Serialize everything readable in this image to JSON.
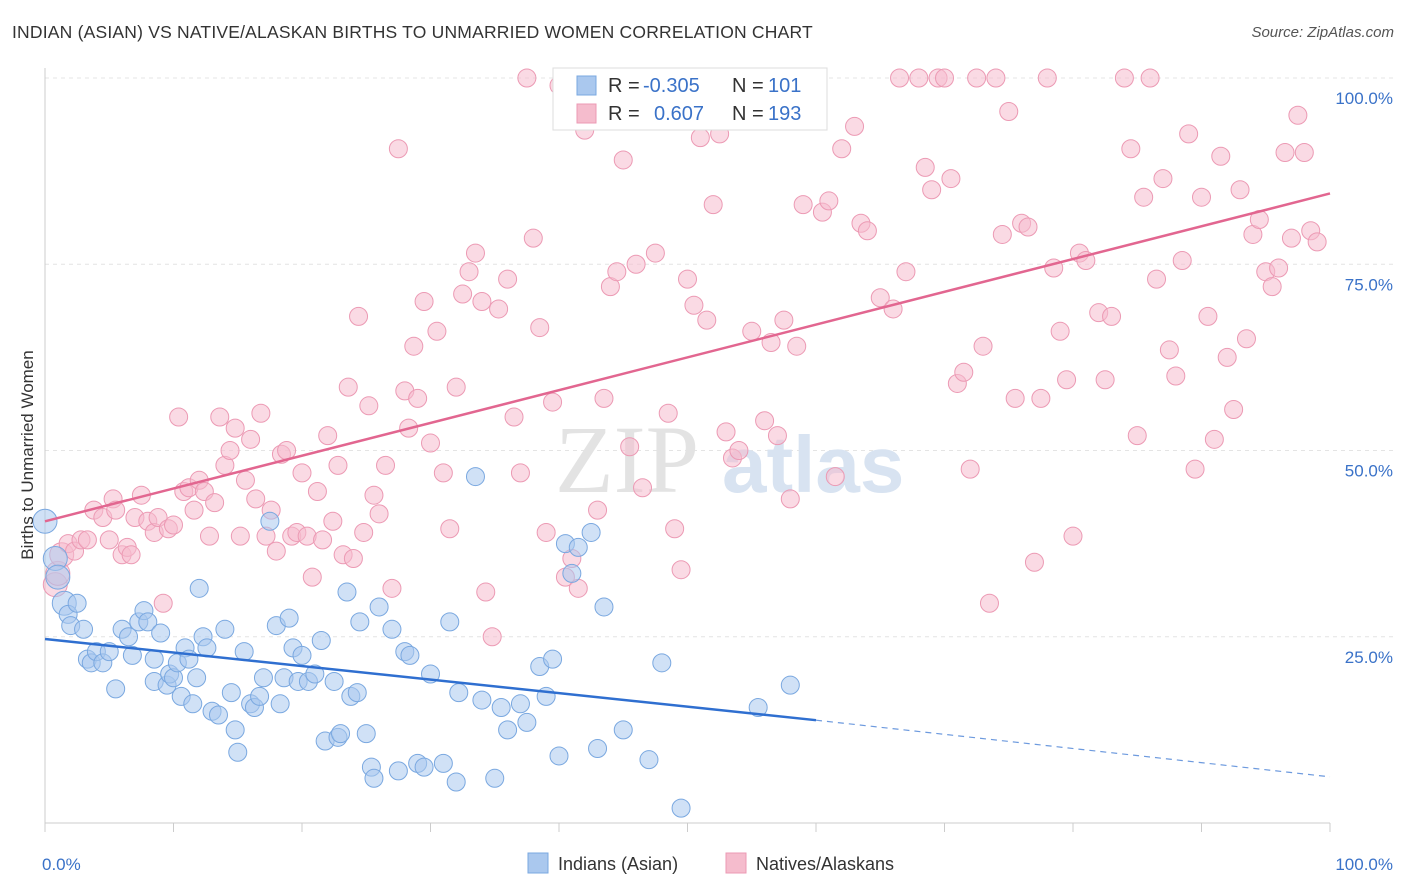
{
  "header": {
    "title": "INDIAN (ASIAN) VS NATIVE/ALASKAN BIRTHS TO UNMARRIED WOMEN CORRELATION CHART",
    "source": "Source: ZipAtlas.com"
  },
  "watermark": {
    "zip": "ZIP",
    "atlas": "atlas"
  },
  "legend": {
    "rows": [
      {
        "r_label": "R = ",
        "r_value": "-0.305",
        "n_label": "N = ",
        "n_value": "101"
      },
      {
        "r_label": "R = ",
        "r_value": "0.607",
        "n_label": "N = ",
        "n_value": "193"
      }
    ]
  },
  "colors": {
    "blue_fill": "#aac8ee",
    "blue_stroke": "#7aa8e0",
    "blue_line": "#2f6fd0",
    "pink_fill": "#f5bccd",
    "pink_stroke": "#ec9ab4",
    "pink_line": "#e26690",
    "accent_text": "#3a72c8"
  },
  "chart_data": {
    "type": "scatter",
    "xlabel": "",
    "ylabel": "Births to Unmarried Women",
    "xlim": [
      0,
      100
    ],
    "ylim": [
      0,
      100
    ],
    "x_tick_labels": [
      "0.0%",
      "100.0%"
    ],
    "y_ticks": [
      25,
      50,
      75,
      100
    ],
    "y_tick_labels": [
      "25.0%",
      "50.0%",
      "75.0%",
      "100.0%"
    ],
    "grid": true,
    "legend_position": "bottom-center",
    "series": [
      {
        "name": "Indians (Asian)",
        "color": "#aac8ee",
        "trend": {
          "x0": 0,
          "y0": 24.7,
          "x1": 60,
          "y1": 13.8,
          "dashed_to_x": 100,
          "dashed_to_y": 6.2
        },
        "points": [
          [
            0,
            40.5
          ],
          [
            0.8,
            35.5
          ],
          [
            1,
            33
          ],
          [
            1.5,
            29.5
          ],
          [
            1.8,
            28
          ],
          [
            2,
            26.5
          ],
          [
            2.5,
            29.5
          ],
          [
            3,
            26
          ],
          [
            3.3,
            22
          ],
          [
            3.6,
            21.5
          ],
          [
            4,
            23
          ],
          [
            4.5,
            21.5
          ],
          [
            5,
            23
          ],
          [
            5.5,
            18
          ],
          [
            6,
            26
          ],
          [
            6.5,
            25
          ],
          [
            6.8,
            22.5
          ],
          [
            7.3,
            27
          ],
          [
            7.7,
            28.5
          ],
          [
            8,
            27
          ],
          [
            8.5,
            22
          ],
          [
            8.5,
            19
          ],
          [
            9,
            25.5
          ],
          [
            9.5,
            18.5
          ],
          [
            9.7,
            20
          ],
          [
            10,
            19.5
          ],
          [
            10.3,
            21.5
          ],
          [
            10.6,
            17
          ],
          [
            10.9,
            23.5
          ],
          [
            11.2,
            22
          ],
          [
            11.5,
            16
          ],
          [
            11.8,
            19.5
          ],
          [
            12,
            31.5
          ],
          [
            12.3,
            25
          ],
          [
            12.6,
            23.5
          ],
          [
            13,
            15
          ],
          [
            13.5,
            14.5
          ],
          [
            14,
            26
          ],
          [
            14.5,
            17.5
          ],
          [
            14.8,
            12.5
          ],
          [
            15,
            9.5
          ],
          [
            15.5,
            23
          ],
          [
            16,
            16
          ],
          [
            16.3,
            15.5
          ],
          [
            16.7,
            17
          ],
          [
            17,
            19.5
          ],
          [
            17.5,
            40.5
          ],
          [
            18,
            26.5
          ],
          [
            18.3,
            16
          ],
          [
            18.6,
            19.5
          ],
          [
            19,
            27.5
          ],
          [
            19.3,
            23.5
          ],
          [
            19.7,
            19
          ],
          [
            20,
            22.5
          ],
          [
            20.5,
            19
          ],
          [
            21,
            20
          ],
          [
            21.5,
            24.5
          ],
          [
            21.8,
            11
          ],
          [
            22.5,
            19
          ],
          [
            22.8,
            11.5
          ],
          [
            23,
            12
          ],
          [
            23.5,
            31
          ],
          [
            23.8,
            17
          ],
          [
            24.3,
            17.5
          ],
          [
            24.5,
            27
          ],
          [
            25,
            12
          ],
          [
            25.4,
            7.5
          ],
          [
            25.6,
            6
          ],
          [
            26,
            29
          ],
          [
            27,
            26
          ],
          [
            27.5,
            7
          ],
          [
            28,
            23
          ],
          [
            28.4,
            22.5
          ],
          [
            29,
            8
          ],
          [
            29.5,
            7.5
          ],
          [
            30,
            20
          ],
          [
            31,
            8
          ],
          [
            31.5,
            27
          ],
          [
            32,
            5.5
          ],
          [
            32.2,
            17.5
          ],
          [
            33.5,
            46.5
          ],
          [
            34,
            16.5
          ],
          [
            35,
            6
          ],
          [
            35.5,
            15.5
          ],
          [
            36,
            12.5
          ],
          [
            37,
            16
          ],
          [
            37.5,
            13.5
          ],
          [
            38.5,
            21
          ],
          [
            39,
            17
          ],
          [
            39.5,
            22
          ],
          [
            40,
            9
          ],
          [
            40.5,
            37.5
          ],
          [
            41,
            33.5
          ],
          [
            41.5,
            37
          ],
          [
            42.5,
            39
          ],
          [
            43,
            10
          ],
          [
            43.5,
            29
          ],
          [
            45,
            12.5
          ],
          [
            47,
            8.5
          ],
          [
            48,
            21.5
          ],
          [
            49.5,
            2
          ],
          [
            55.5,
            15.5
          ],
          [
            58,
            18.5
          ]
        ]
      },
      {
        "name": "Natives/Alaskans",
        "color": "#f5bccd",
        "trend": {
          "x0": 0,
          "y0": 40.5,
          "x1": 100,
          "y1": 84.5
        },
        "points": [
          [
            0.8,
            32
          ],
          [
            1,
            33.5
          ],
          [
            1.3,
            36
          ],
          [
            1.8,
            37.5
          ],
          [
            2.3,
            36.5
          ],
          [
            2.8,
            38
          ],
          [
            3.3,
            38
          ],
          [
            3.8,
            42
          ],
          [
            4.5,
            41
          ],
          [
            5,
            38
          ],
          [
            5.3,
            43.5
          ],
          [
            5.5,
            42
          ],
          [
            6,
            36
          ],
          [
            6.4,
            37
          ],
          [
            6.7,
            36
          ],
          [
            7,
            41
          ],
          [
            7.5,
            44
          ],
          [
            8,
            40.5
          ],
          [
            8.5,
            39
          ],
          [
            8.8,
            41
          ],
          [
            9.2,
            29.5
          ],
          [
            9.6,
            39.5
          ],
          [
            10,
            40
          ],
          [
            10.4,
            54.5
          ],
          [
            10.8,
            44.5
          ],
          [
            11.2,
            45
          ],
          [
            11.6,
            42
          ],
          [
            12,
            46
          ],
          [
            12.4,
            44.5
          ],
          [
            12.8,
            38.5
          ],
          [
            13.2,
            43
          ],
          [
            13.6,
            54.5
          ],
          [
            14,
            48
          ],
          [
            14.4,
            50
          ],
          [
            14.8,
            53
          ],
          [
            15.2,
            38.5
          ],
          [
            15.6,
            46
          ],
          [
            16,
            51.5
          ],
          [
            16.4,
            43.5
          ],
          [
            16.8,
            55
          ],
          [
            17.2,
            38.5
          ],
          [
            17.6,
            42
          ],
          [
            18,
            36.5
          ],
          [
            18.4,
            49.5
          ],
          [
            18.8,
            50
          ],
          [
            19.2,
            38.5
          ],
          [
            19.6,
            39
          ],
          [
            20,
            47
          ],
          [
            20.4,
            38.5
          ],
          [
            20.8,
            33
          ],
          [
            21.2,
            44.5
          ],
          [
            21.6,
            38
          ],
          [
            22,
            52
          ],
          [
            22.4,
            40.5
          ],
          [
            22.8,
            48
          ],
          [
            23.2,
            36
          ],
          [
            23.6,
            58.5
          ],
          [
            24,
            35.5
          ],
          [
            24.4,
            68
          ],
          [
            24.8,
            39
          ],
          [
            25.2,
            56
          ],
          [
            25.6,
            44
          ],
          [
            26,
            41.5
          ],
          [
            26.5,
            48
          ],
          [
            27,
            31.5
          ],
          [
            27.5,
            90.5
          ],
          [
            28,
            58
          ],
          [
            28.3,
            53
          ],
          [
            28.7,
            64
          ],
          [
            29,
            57
          ],
          [
            29.5,
            70
          ],
          [
            30,
            51
          ],
          [
            30.5,
            66
          ],
          [
            31,
            47
          ],
          [
            31.5,
            39.5
          ],
          [
            32,
            58.5
          ],
          [
            32.5,
            71
          ],
          [
            33,
            74
          ],
          [
            33.5,
            76.5
          ],
          [
            34,
            70
          ],
          [
            34.3,
            31
          ],
          [
            34.8,
            25
          ],
          [
            35.3,
            69
          ],
          [
            36,
            73
          ],
          [
            36.5,
            54.5
          ],
          [
            37,
            47
          ],
          [
            37.5,
            100
          ],
          [
            38,
            78.5
          ],
          [
            38.5,
            66.5
          ],
          [
            39,
            39
          ],
          [
            39.5,
            56.5
          ],
          [
            40,
            99
          ],
          [
            40.5,
            33
          ],
          [
            41,
            35.5
          ],
          [
            41.5,
            31.5
          ],
          [
            42,
            93
          ],
          [
            42.5,
            100
          ],
          [
            43,
            42
          ],
          [
            43.5,
            57
          ],
          [
            44,
            72
          ],
          [
            44.5,
            74
          ],
          [
            45,
            89
          ],
          [
            45.5,
            50.5
          ],
          [
            46,
            75
          ],
          [
            46.5,
            45
          ],
          [
            47.5,
            76.5
          ],
          [
            48,
            100
          ],
          [
            48.5,
            55
          ],
          [
            49,
            39.5
          ],
          [
            49.5,
            34
          ],
          [
            50,
            73
          ],
          [
            50.5,
            69.5
          ],
          [
            51,
            92
          ],
          [
            51.5,
            67.5
          ],
          [
            52,
            83
          ],
          [
            52.5,
            92.5
          ],
          [
            53,
            52.5
          ],
          [
            53.5,
            49
          ],
          [
            54,
            50
          ],
          [
            55,
            66
          ],
          [
            56,
            54
          ],
          [
            56.5,
            64.5
          ],
          [
            57,
            52
          ],
          [
            57.5,
            67.5
          ],
          [
            58,
            43.5
          ],
          [
            58.5,
            64
          ],
          [
            59,
            83
          ],
          [
            60,
            100
          ],
          [
            60.5,
            82
          ],
          [
            61,
            83.5
          ],
          [
            61.5,
            46.5
          ],
          [
            62,
            90.5
          ],
          [
            63,
            93.5
          ],
          [
            63.5,
            80.5
          ],
          [
            64,
            79.5
          ],
          [
            65,
            70.5
          ],
          [
            66,
            69
          ],
          [
            66.5,
            100
          ],
          [
            67,
            74
          ],
          [
            68,
            100
          ],
          [
            68.5,
            88
          ],
          [
            69,
            85
          ],
          [
            69.5,
            100
          ],
          [
            70,
            100
          ],
          [
            70.5,
            86.5
          ],
          [
            71,
            59
          ],
          [
            71.5,
            60.5
          ],
          [
            72,
            47.5
          ],
          [
            72.5,
            100
          ],
          [
            73,
            64
          ],
          [
            73.5,
            29.5
          ],
          [
            74,
            100
          ],
          [
            74.5,
            79
          ],
          [
            75,
            95.5
          ],
          [
            75.5,
            57
          ],
          [
            76,
            80.5
          ],
          [
            76.5,
            80
          ],
          [
            77,
            35
          ],
          [
            77.5,
            57
          ],
          [
            78,
            100
          ],
          [
            78.5,
            74.5
          ],
          [
            79,
            66
          ],
          [
            79.5,
            59.5
          ],
          [
            80,
            38.5
          ],
          [
            80.5,
            76.5
          ],
          [
            81,
            75.5
          ],
          [
            82,
            68.5
          ],
          [
            82.5,
            59.5
          ],
          [
            83,
            68
          ],
          [
            84,
            100
          ],
          [
            84.5,
            90.5
          ],
          [
            85,
            52
          ],
          [
            85.5,
            84
          ],
          [
            86,
            100
          ],
          [
            86.5,
            73
          ],
          [
            87,
            86.5
          ],
          [
            87.5,
            63.5
          ],
          [
            88,
            60
          ],
          [
            88.5,
            75.5
          ],
          [
            89,
            92.5
          ],
          [
            89.5,
            47.5
          ],
          [
            90,
            84
          ],
          [
            90.5,
            68
          ],
          [
            91,
            51.5
          ],
          [
            91.5,
            89.5
          ],
          [
            92,
            62.5
          ],
          [
            92.5,
            55.5
          ],
          [
            93,
            85
          ],
          [
            93.5,
            65
          ],
          [
            94,
            79
          ],
          [
            94.5,
            81
          ],
          [
            95,
            74
          ],
          [
            95.5,
            72
          ],
          [
            96,
            74.5
          ],
          [
            96.5,
            90
          ],
          [
            97,
            78.5
          ],
          [
            97.5,
            95
          ],
          [
            98,
            90
          ],
          [
            98.5,
            79.5
          ],
          [
            99,
            78
          ]
        ]
      }
    ]
  }
}
